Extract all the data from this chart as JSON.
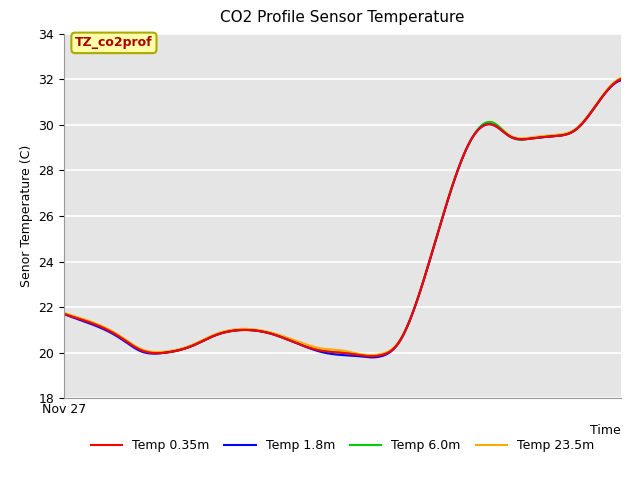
{
  "title": "CO2 Profile Sensor Temperature",
  "ylabel": "Senor Temperature (C)",
  "xlabel": "Time",
  "x_tick_label": "Nov 27",
  "ylim": [
    18,
    34
  ],
  "yticks": [
    18,
    20,
    22,
    24,
    26,
    28,
    30,
    32,
    34
  ],
  "annotation_text": "TZ_co2prof",
  "annotation_color": "#aa0000",
  "annotation_bg": "#ffffaa",
  "annotation_border": "#aaaa00",
  "bg_color": "#e5e5e5",
  "legend_entries": [
    "Temp 0.35m",
    "Temp 1.8m",
    "Temp 6.0m",
    "Temp 23.5m"
  ],
  "line_colors": [
    "#ff0000",
    "#0000ff",
    "#00cc00",
    "#ffaa00"
  ],
  "line_width": 1.5,
  "base_x": [
    0,
    0.05,
    0.1,
    0.14,
    0.18,
    0.23,
    0.27,
    0.32,
    0.37,
    0.42,
    0.46,
    0.5,
    0.53,
    0.55,
    0.57,
    0.6,
    0.65,
    0.7,
    0.73,
    0.77,
    0.8,
    0.84,
    0.88,
    0.92,
    0.96,
    1.0
  ],
  "base_y": [
    21.7,
    21.3,
    20.7,
    20.1,
    20.0,
    20.3,
    20.75,
    21.0,
    20.85,
    20.4,
    20.1,
    20.0,
    19.9,
    19.85,
    19.9,
    20.4,
    23.5,
    27.5,
    29.3,
    30.0,
    29.5,
    29.4,
    29.5,
    29.8,
    31.0,
    32.0
  ],
  "offsets_035": [
    0,
    0,
    0,
    0,
    0,
    0,
    0,
    0,
    0,
    0,
    0,
    0,
    0,
    0,
    0,
    0,
    0,
    0,
    0,
    0,
    0,
    0,
    0,
    0,
    0,
    0
  ],
  "offsets_18": [
    0,
    -0.05,
    -0.05,
    -0.05,
    0,
    0,
    0,
    0,
    0,
    0,
    -0.05,
    -0.1,
    -0.05,
    -0.05,
    -0.05,
    0,
    0,
    0,
    0,
    0,
    0,
    0,
    0,
    0,
    0,
    -0.05
  ],
  "offsets_60": [
    0,
    0,
    0,
    0,
    0,
    0,
    0,
    0,
    0,
    0,
    0,
    0,
    0,
    0,
    0,
    0,
    0,
    0,
    0,
    0.1,
    0,
    0,
    0,
    0,
    0,
    0
  ],
  "offsets_235": [
    0.05,
    0.05,
    0.05,
    0.05,
    0.05,
    0.05,
    0.05,
    0.05,
    0.05,
    0.1,
    0.1,
    0.1,
    0.05,
    0.05,
    0.05,
    0.05,
    0.05,
    0.05,
    0,
    0.1,
    0.05,
    0.05,
    0.05,
    0.05,
    0.05,
    0.05
  ]
}
